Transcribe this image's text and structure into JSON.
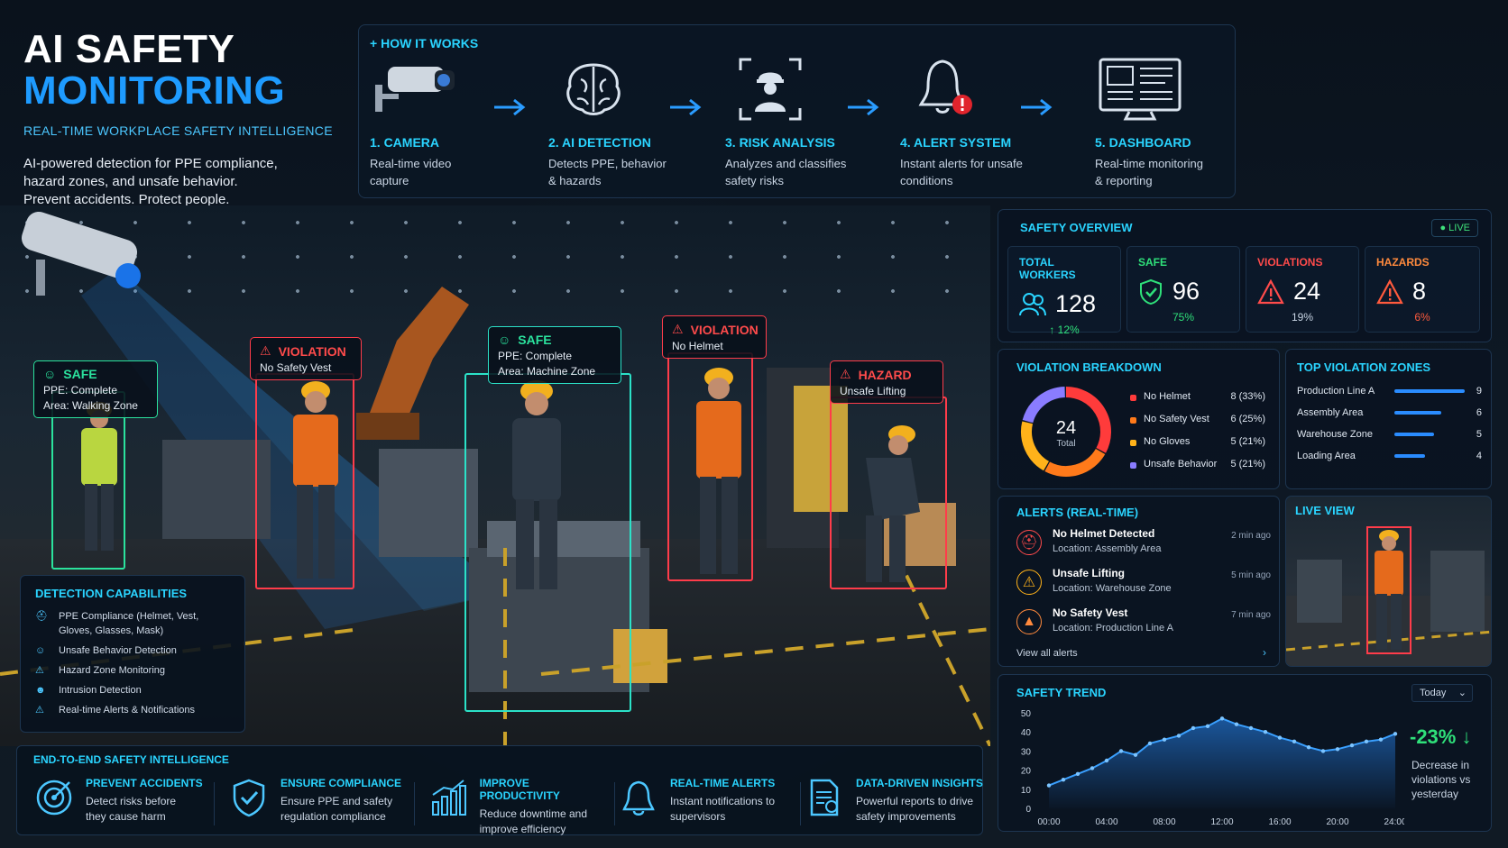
{
  "hero": {
    "title_line1": "AI SAFETY",
    "title_line2": "MONITORING",
    "subtitle": "REAL-TIME WORKPLACE SAFETY INTELLIGENCE",
    "intro_line1": "AI-powered detection for PPE compliance,",
    "intro_line2": "hazard zones, and unsafe behavior.",
    "intro_line3": "Prevent accidents. Protect people."
  },
  "how_it_works": {
    "title": "HOW IT WORKS",
    "steps": [
      {
        "title": "1. CAMERA",
        "desc1": "Real-time video",
        "desc2": "capture",
        "icon": "camera-icon"
      },
      {
        "title": "2. AI DETECTION",
        "desc1": "Detects PPE, behavior",
        "desc2": "& hazards",
        "icon": "brain-icon"
      },
      {
        "title": "3. RISK ANALYSIS",
        "desc1": "Analyzes and classifies",
        "desc2": "safety risks",
        "icon": "worker-scan-icon"
      },
      {
        "title": "4. ALERT SYSTEM",
        "desc1": "Instant alerts for unsafe",
        "desc2": "conditions",
        "icon": "bell-alert-icon"
      },
      {
        "title": "5. DASHBOARD",
        "desc1": "Real-time monitoring",
        "desc2": "& reporting",
        "icon": "monitor-icon"
      }
    ]
  },
  "scene": {
    "tags": [
      {
        "status": "SAFE",
        "line1": "PPE: Complete",
        "line2": "Area: Walking Zone"
      },
      {
        "status": "VIOLATION",
        "line1": "No Safety Vest",
        "line2": ""
      },
      {
        "status": "SAFE",
        "line1": "PPE: Complete",
        "line2": "Area: Machine Zone"
      },
      {
        "status": "VIOLATION",
        "line1": "No Helmet",
        "line2": ""
      },
      {
        "status": "HAZARD",
        "line1": "Unsafe Lifting",
        "line2": ""
      }
    ]
  },
  "detection_capabilities": {
    "title": "DETECTION CAPABILITIES",
    "items": [
      {
        "line1": "PPE Compliance (Helmet, Vest,",
        "line2": "Gloves, Glasses, Mask)"
      },
      {
        "line1": "Unsafe Behavior Detection",
        "line2": ""
      },
      {
        "line1": "Hazard Zone Monitoring",
        "line2": ""
      },
      {
        "line1": "Intrusion Detection",
        "line2": ""
      },
      {
        "line1": "Real-time Alerts & Notifications",
        "line2": ""
      }
    ]
  },
  "end_to_end": {
    "title": "END-TO-END SAFETY INTELLIGENCE",
    "items": [
      {
        "title": "PREVENT ACCIDENTS",
        "d1": "Detect risks before",
        "d2": "they cause harm"
      },
      {
        "title": "ENSURE COMPLIANCE",
        "d1": "Ensure PPE and safety",
        "d2": "regulation compliance"
      },
      {
        "title": "IMPROVE PRODUCTIVITY",
        "d1": "Reduce downtime and",
        "d2": "improve efficiency"
      },
      {
        "title": "REAL-TIME ALERTS",
        "d1": "Instant notifications to",
        "d2": "supervisors"
      },
      {
        "title": "DATA-DRIVEN INSIGHTS",
        "d1": "Powerful reports to drive",
        "d2": "safety improvements"
      }
    ]
  },
  "overview": {
    "title": "SAFETY OVERVIEW",
    "live": "LIVE",
    "stats": [
      {
        "label": "TOTAL WORKERS",
        "value": "128",
        "sub": "↑ 12%",
        "color": "#2ad4ff"
      },
      {
        "label": "SAFE",
        "value": "96",
        "sub": "75%",
        "color": "#2fe07a"
      },
      {
        "label": "VIOLATIONS",
        "value": "24",
        "sub": "19%",
        "color": "#ff4b4b"
      },
      {
        "label": "HAZARDS",
        "value": "8",
        "sub": "6%",
        "color": "#ff8a3d"
      }
    ]
  },
  "violation_breakdown": {
    "title": "VIOLATION BREAKDOWN",
    "total_value": "24",
    "total_label": "Total",
    "items": [
      {
        "label": "No Helmet",
        "value": "8 (33%)",
        "count": 8,
        "color": "#ff3b3b"
      },
      {
        "label": "No Safety Vest",
        "value": "6 (25%)",
        "count": 6,
        "color": "#ff7a1a"
      },
      {
        "label": "No Gloves",
        "value": "5 (21%)",
        "count": 5,
        "color": "#ffb21a"
      },
      {
        "label": "Unsafe Behavior",
        "value": "5 (21%)",
        "count": 5,
        "color": "#8a7cff"
      }
    ]
  },
  "top_zones": {
    "title": "TOP VIOLATION ZONES",
    "zones": [
      {
        "name": "Production Line A",
        "value": "9",
        "fraction": 1.0
      },
      {
        "name": "Assembly Area",
        "value": "6",
        "fraction": 0.67
      },
      {
        "name": "Warehouse Zone",
        "value": "5",
        "fraction": 0.56
      },
      {
        "name": "Loading Area",
        "value": "4",
        "fraction": 0.44
      }
    ]
  },
  "alerts": {
    "title": "ALERTS (REAL-TIME)",
    "items": [
      {
        "title": "No Helmet Detected",
        "location": "Location: Assembly Area",
        "time": "2 min ago",
        "color": "#ff4b4b"
      },
      {
        "title": "Unsafe Lifting",
        "location": "Location: Warehouse Zone",
        "time": "5 min ago",
        "color": "#ffb21a"
      },
      {
        "title": "No Safety Vest",
        "location": "Location: Production Line A",
        "time": "7 min ago",
        "color": "#ff8a3d"
      }
    ],
    "view_all": "View all alerts"
  },
  "live_view": {
    "title": "LIVE VIEW"
  },
  "safety_trend": {
    "title": "SAFETY TREND",
    "range": "Today",
    "change": "-23% ↓",
    "change_sub": "Decrease in violations vs yesterday"
  },
  "chart_data": {
    "type": "area",
    "title": "SAFETY TREND",
    "xlabel": "",
    "ylabel": "",
    "x_ticks": [
      "00:00",
      "04:00",
      "08:00",
      "12:00",
      "16:00",
      "20:00",
      "24:00"
    ],
    "y_ticks": [
      0,
      10,
      20,
      30,
      40,
      50
    ],
    "ylim": [
      0,
      50
    ],
    "xlim": [
      0,
      24
    ],
    "x": [
      0,
      1,
      2,
      3,
      4,
      5,
      6,
      7,
      8,
      9,
      10,
      11,
      12,
      13,
      14,
      15,
      16,
      17,
      18,
      19,
      20,
      21,
      22,
      23,
      24
    ],
    "values": [
      12,
      15,
      18,
      21,
      25,
      30,
      28,
      34,
      36,
      38,
      42,
      43,
      47,
      44,
      42,
      40,
      37,
      35,
      32,
      30,
      31,
      33,
      35,
      36,
      39
    ],
    "grid": false
  }
}
